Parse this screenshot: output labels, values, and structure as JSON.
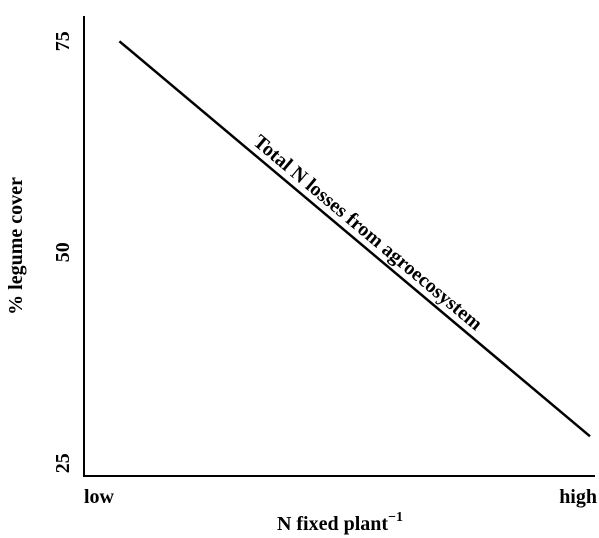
{
  "chart_data": {
    "type": "line",
    "xlabel": "N fixed plant",
    "xlabel_superscript": "−1",
    "ylabel": "% legume cover",
    "x_tick_labels": [
      "low",
      "high"
    ],
    "y_ticks": [
      75,
      50,
      25
    ],
    "ylim": [
      23.5,
      78
    ],
    "series": [
      {
        "name": "Total N losses from agroecosystem",
        "x": [
          0.07,
          1.0
        ],
        "y": [
          75.0,
          28.2
        ]
      }
    ],
    "grid": false,
    "legend": "none"
  }
}
